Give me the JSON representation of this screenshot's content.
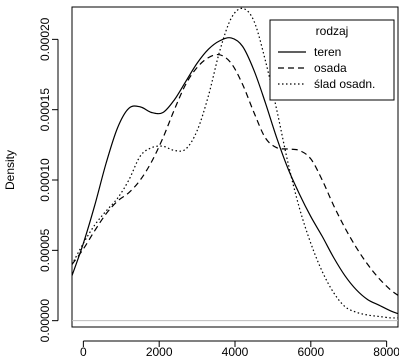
{
  "chart_data": {
    "type": "line",
    "title": "",
    "xlabel": "",
    "ylabel": "Density",
    "xlim": [
      -300,
      8300
    ],
    "ylim": [
      -4.5e-06,
      0.000223
    ],
    "x_ticks": [
      0,
      2000,
      4000,
      6000,
      8000
    ],
    "x_tick_labels": [
      "0",
      "2000",
      "4000",
      "6000",
      "8000"
    ],
    "y_ticks": [
      0,
      5e-05,
      0.0001,
      0.00015,
      0.0002
    ],
    "y_tick_labels": [
      "0.00000",
      "0.00005",
      "0.00010",
      "0.00015",
      "0.00020"
    ],
    "grid": false,
    "zero_line": true,
    "legend": {
      "title": "rodzaj",
      "position": "top-right"
    },
    "series": [
      {
        "name": "teren",
        "line_style": "solid",
        "x": [
          -300,
          0,
          300,
          600,
          900,
          1200,
          1500,
          1800,
          2100,
          2400,
          2700,
          3000,
          3300,
          3600,
          3900,
          4200,
          4500,
          4800,
          5100,
          5400,
          5700,
          6000,
          6300,
          6600,
          6900,
          7200,
          7500,
          7800,
          8100,
          8300
        ],
        "y": [
          3.2e-05,
          5.5e-05,
          8.2e-05,
          0.000112,
          0.000137,
          0.000151,
          0.000152,
          0.000148,
          0.000148,
          0.000157,
          0.00017,
          0.000183,
          0.000193,
          0.000199,
          0.000201,
          0.000195,
          0.000178,
          0.000155,
          0.00013,
          0.000108,
          9e-05,
          7.4e-05,
          6e-05,
          4.5e-05,
          3.2e-05,
          2.2e-05,
          1.5e-05,
          1.1e-05,
          7e-06,
          5e-06
        ]
      },
      {
        "name": "osada",
        "line_style": "dashed",
        "x": [
          -300,
          0,
          300,
          600,
          900,
          1200,
          1500,
          1800,
          2100,
          2400,
          2700,
          3000,
          3300,
          3600,
          3900,
          4200,
          4500,
          4800,
          5100,
          5400,
          5700,
          6000,
          6300,
          6600,
          6900,
          7200,
          7500,
          7800,
          8100,
          8300
        ],
        "y": [
          4e-05,
          5.1e-05,
          6.4e-05,
          7.6e-05,
          8.5e-05,
          9.1e-05,
          0.0001,
          0.000113,
          0.00013,
          0.00015,
          0.000168,
          0.00018,
          0.000187,
          0.000189,
          0.000183,
          0.000168,
          0.000148,
          0.00013,
          0.000123,
          0.000122,
          0.000121,
          0.000115,
          0.0001,
          8.2e-05,
          6.6e-05,
          5.2e-05,
          4e-05,
          3e-05,
          2.2e-05,
          1.8e-05
        ]
      },
      {
        "name": "ślad osadn.",
        "line_style": "dotted",
        "x": [
          -300,
          0,
          300,
          600,
          900,
          1200,
          1500,
          1800,
          2100,
          2400,
          2700,
          3000,
          3300,
          3600,
          3900,
          4200,
          4500,
          4800,
          5100,
          5400,
          5700,
          6000,
          6300,
          6600,
          6900,
          7200,
          7500,
          7800,
          8100,
          8300
        ],
        "y": [
          4e-05,
          5.5e-05,
          6.8e-05,
          7.8e-05,
          8.7e-05,
          0.0001,
          0.000117,
          0.000123,
          0.000124,
          0.000121,
          0.000122,
          0.000135,
          0.00016,
          0.000192,
          0.000215,
          0.000222,
          0.000213,
          0.000185,
          0.00015,
          0.000112,
          8e-05,
          5.5e-05,
          3.5e-05,
          2e-05,
          1e-05,
          6e-06,
          4e-06,
          3e-06,
          2e-06,
          2e-06
        ]
      }
    ]
  }
}
